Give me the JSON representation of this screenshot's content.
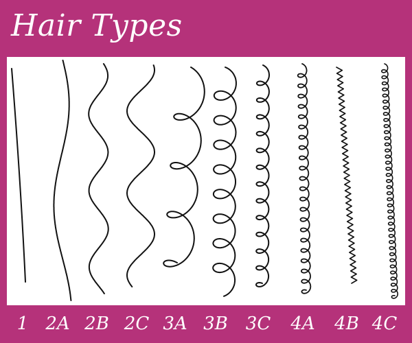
{
  "title": "Hair Types",
  "background_color": "#b5327a",
  "panel_color": "#ffffff",
  "stroke_color": "#111111",
  "hair_types": [
    {
      "label": "1",
      "pattern": "straight"
    },
    {
      "label": "2A",
      "pattern": "wavy"
    },
    {
      "label": "2B",
      "pattern": "wavy"
    },
    {
      "label": "2C",
      "pattern": "wavy"
    },
    {
      "label": "3A",
      "pattern": "curly"
    },
    {
      "label": "3B",
      "pattern": "curly"
    },
    {
      "label": "3C",
      "pattern": "curly"
    },
    {
      "label": "4A",
      "pattern": "coily"
    },
    {
      "label": "4B",
      "pattern": "zigzag"
    },
    {
      "label": "4C",
      "pattern": "coily"
    }
  ]
}
